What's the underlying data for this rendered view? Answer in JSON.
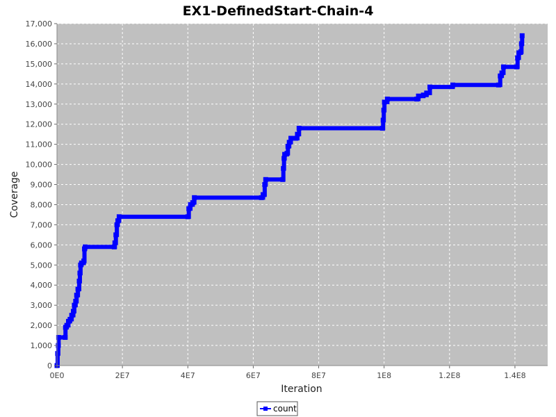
{
  "chart_data": {
    "type": "line",
    "title": "EX1-DefinedStart-Chain-4",
    "xlabel": "Iteration",
    "ylabel": "Coverage",
    "xlim": [
      0,
      150000000
    ],
    "ylim": [
      0,
      17000
    ],
    "x_ticks": [
      {
        "value": 0,
        "label": "0E0"
      },
      {
        "value": 20000000,
        "label": "2E7"
      },
      {
        "value": 40000000,
        "label": "4E7"
      },
      {
        "value": 60000000,
        "label": "6E7"
      },
      {
        "value": 80000000,
        "label": "8E7"
      },
      {
        "value": 100000000,
        "label": "1E8"
      },
      {
        "value": 120000000,
        "label": "1.2E8"
      },
      {
        "value": 140000000,
        "label": "1.4E8"
      }
    ],
    "y_ticks": [
      {
        "value": 0,
        "label": "0"
      },
      {
        "value": 1000,
        "label": "1,000"
      },
      {
        "value": 2000,
        "label": "2,000"
      },
      {
        "value": 3000,
        "label": "3,000"
      },
      {
        "value": 4000,
        "label": "4,000"
      },
      {
        "value": 5000,
        "label": "5,000"
      },
      {
        "value": 6000,
        "label": "6,000"
      },
      {
        "value": 7000,
        "label": "7,000"
      },
      {
        "value": 8000,
        "label": "8,000"
      },
      {
        "value": 9000,
        "label": "9,000"
      },
      {
        "value": 10000,
        "label": "10,000"
      },
      {
        "value": 11000,
        "label": "11,000"
      },
      {
        "value": 12000,
        "label": "12,000"
      },
      {
        "value": 13000,
        "label": "13,000"
      },
      {
        "value": 14000,
        "label": "14,000"
      },
      {
        "value": 15000,
        "label": "15,000"
      },
      {
        "value": 16000,
        "label": "16,000"
      },
      {
        "value": 17000,
        "label": "17,000"
      }
    ],
    "grid": true,
    "legend_position": "bottom-center",
    "colors": {
      "series": "#0000ff",
      "plot_background": "#c0c0c0",
      "grid": "#ffffff"
    },
    "series": [
      {
        "name": "count",
        "points": [
          [
            0,
            0
          ],
          [
            200000,
            600
          ],
          [
            400000,
            1000
          ],
          [
            500000,
            1400
          ],
          [
            2500000,
            1400
          ],
          [
            2600000,
            1900
          ],
          [
            3000000,
            2000
          ],
          [
            3500000,
            2200
          ],
          [
            4000000,
            2300
          ],
          [
            4500000,
            2500
          ],
          [
            5000000,
            2700
          ],
          [
            5300000,
            3000
          ],
          [
            5700000,
            3200
          ],
          [
            6000000,
            3500
          ],
          [
            6400000,
            3800
          ],
          [
            6800000,
            4200
          ],
          [
            7000000,
            4600
          ],
          [
            7200000,
            5000
          ],
          [
            7500000,
            5100
          ],
          [
            8200000,
            5200
          ],
          [
            8400000,
            5800
          ],
          [
            8600000,
            5900
          ],
          [
            17500000,
            5900
          ],
          [
            17700000,
            6100
          ],
          [
            18000000,
            6500
          ],
          [
            18300000,
            7000
          ],
          [
            18600000,
            7200
          ],
          [
            19000000,
            7400
          ],
          [
            40000000,
            7400
          ],
          [
            40300000,
            7800
          ],
          [
            40800000,
            8000
          ],
          [
            41500000,
            8100
          ],
          [
            42000000,
            8350
          ],
          [
            62500000,
            8350
          ],
          [
            63000000,
            8500
          ],
          [
            63300000,
            8500
          ],
          [
            63500000,
            9000
          ],
          [
            63800000,
            9250
          ],
          [
            69000000,
            9250
          ],
          [
            69200000,
            9800
          ],
          [
            69400000,
            10300
          ],
          [
            69600000,
            10500
          ],
          [
            70300000,
            10550
          ],
          [
            70600000,
            10900
          ],
          [
            71000000,
            11100
          ],
          [
            71500000,
            11300
          ],
          [
            73000000,
            11300
          ],
          [
            73500000,
            11500
          ],
          [
            74000000,
            11800
          ],
          [
            99500000,
            11800
          ],
          [
            99700000,
            12200
          ],
          [
            99900000,
            12700
          ],
          [
            100100000,
            13100
          ],
          [
            101000000,
            13250
          ],
          [
            110000000,
            13250
          ],
          [
            110500000,
            13400
          ],
          [
            112000000,
            13450
          ],
          [
            113000000,
            13550
          ],
          [
            114000000,
            13850
          ],
          [
            121000000,
            13950
          ],
          [
            135000000,
            13950
          ],
          [
            135500000,
            14400
          ],
          [
            136000000,
            14550
          ],
          [
            136500000,
            14850
          ],
          [
            140500000,
            14850
          ],
          [
            140800000,
            15300
          ],
          [
            141200000,
            15550
          ],
          [
            141800000,
            15600
          ],
          [
            142000000,
            16000
          ],
          [
            142200000,
            16400
          ]
        ]
      }
    ]
  }
}
